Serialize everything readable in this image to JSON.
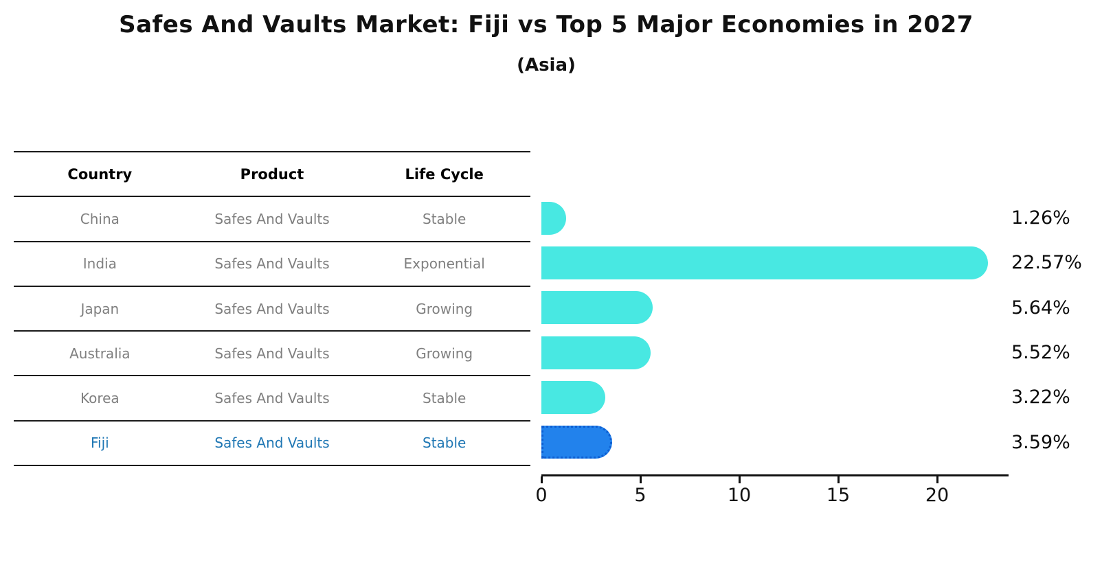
{
  "header": {
    "title": "Safes And Vaults Market: Fiji vs Top 5 Major Economies in 2027",
    "subtitle": "(Asia)"
  },
  "table": {
    "columns": [
      "Country",
      "Product",
      "Life Cycle"
    ],
    "rows": [
      {
        "country": "China",
        "product": "Safes And Vaults",
        "life_cycle": "Stable",
        "highlight": false
      },
      {
        "country": "India",
        "product": "Safes And Vaults",
        "life_cycle": "Exponential",
        "highlight": false
      },
      {
        "country": "Japan",
        "product": "Safes And Vaults",
        "life_cycle": "Growing",
        "highlight": false
      },
      {
        "country": "Australia",
        "product": "Safes And Vaults",
        "life_cycle": "Growing",
        "highlight": false
      },
      {
        "country": "Korea",
        "product": "Safes And Vaults",
        "life_cycle": "Stable",
        "highlight": false
      },
      {
        "country": "Fiji",
        "product": "Safes And Vaults",
        "life_cycle": "Stable",
        "highlight": true
      }
    ]
  },
  "chart_data": {
    "type": "bar",
    "orientation": "horizontal",
    "title": "Safes And Vaults Market: Fiji vs Top 5 Major Economies in 2027",
    "subtitle": "(Asia)",
    "categories": [
      "China",
      "India",
      "Japan",
      "Australia",
      "Korea",
      "Fiji"
    ],
    "values": [
      1.26,
      22.57,
      5.64,
      5.52,
      3.22,
      3.59
    ],
    "value_labels": [
      "1.26%",
      "22.57%",
      "5.64%",
      "5.52%",
      "3.22%",
      "3.59%"
    ],
    "xlabel": "",
    "ylabel": "",
    "xlim": [
      0,
      23.6
    ],
    "xticks": [
      0,
      5,
      10,
      15,
      20
    ],
    "grid": false,
    "legend": "none",
    "bar_color": "#48e8e2",
    "highlight_index": 5,
    "highlight_color": "#2282ec",
    "highlight_border_color": "#0d5ed2",
    "highlight_border_style": "dotted"
  },
  "colors": {
    "row_text": "#7f7f7f",
    "highlight_text": "#1f77b4",
    "header_text": "#000000",
    "axis": "#111111"
  }
}
